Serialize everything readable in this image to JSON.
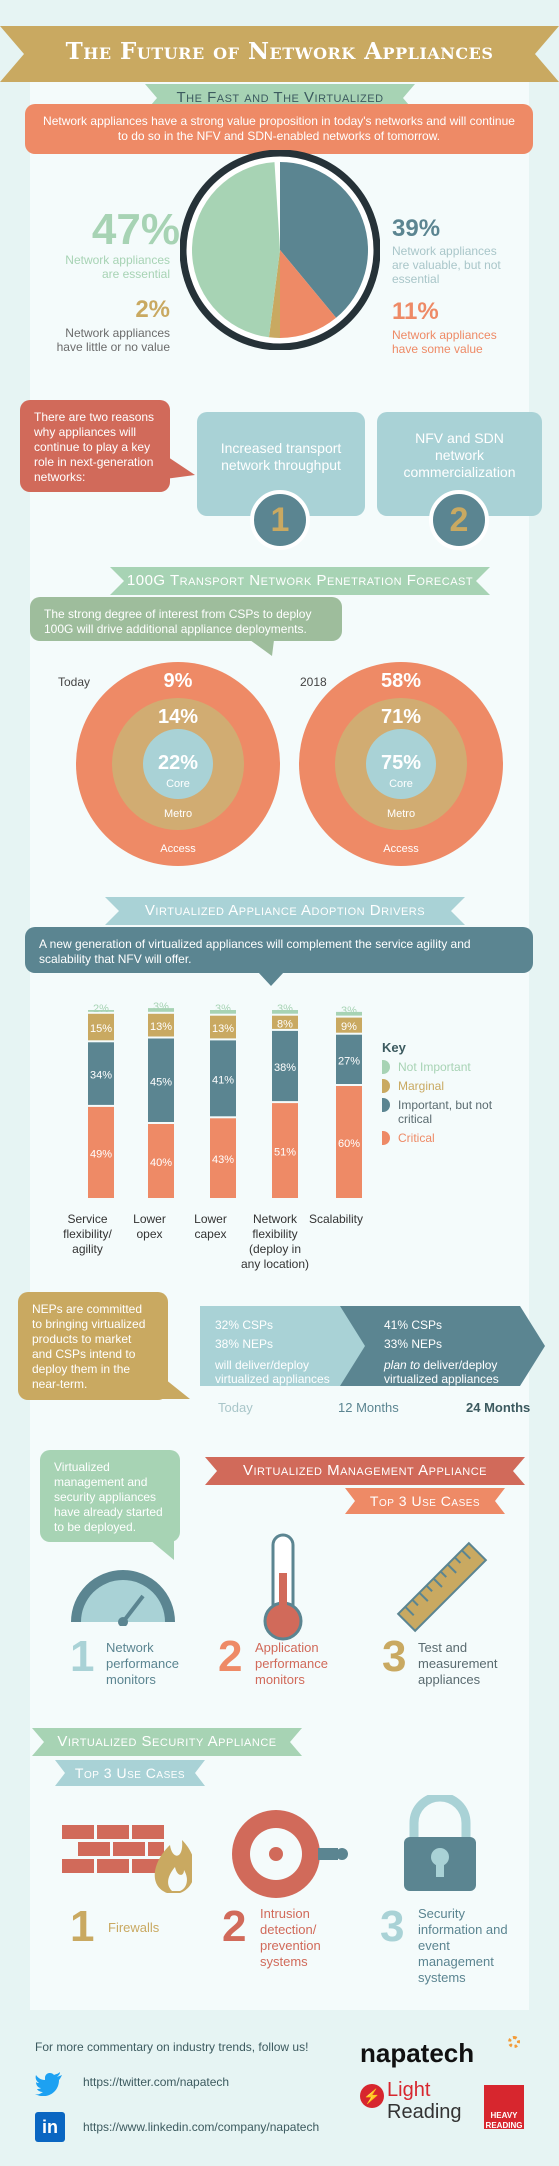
{
  "title": "The Future of Network Appliances",
  "section1": {
    "heading": "The Fast and The Virtualized",
    "intro": "Network appliances have a strong value proposition in today's networks and will continue to do so in the NFV and SDN-enabled networks of tomorrow.",
    "stats": [
      {
        "pct": "47%",
        "label": "Network appliances are essential",
        "color": "#a7d3b4"
      },
      {
        "pct": "2%",
        "label": "Network appliances have little or no value",
        "color": "#c9a961"
      },
      {
        "pct": "39%",
        "label": "Network appliances are valuable, but not essential",
        "color": "#5b8591"
      },
      {
        "pct": "11%",
        "label": "Network appliances have some value",
        "color": "#ee8a66"
      }
    ],
    "reasons_intro": "There are two reasons why appliances will continue to play a key role in next-generation networks:",
    "reasons": [
      {
        "num": "1",
        "label": "Increased transport network throughput"
      },
      {
        "num": "2",
        "label": "NFV and SDN network commercialization"
      }
    ]
  },
  "section2": {
    "heading": "100G Transport Network Penetration Forecast",
    "intro": "The strong degree of interest from CSPs to deploy 100G will drive additional appliance deployments.",
    "donuts": [
      {
        "year": "Today",
        "access": "9%",
        "metro": "14%",
        "core": "22%"
      },
      {
        "year": "2018",
        "access": "58%",
        "metro": "71%",
        "core": "75%"
      }
    ],
    "ring_labels": {
      "core": "Core",
      "metro": "Metro",
      "access": "Access"
    }
  },
  "section3": {
    "heading": "Virtualized Appliance Adoption Drivers",
    "intro": "A new generation of virtualized appliances will complement the service agility and scalability that NFV will offer.",
    "chart_data": {
      "type": "bar",
      "stacked": true,
      "categories": [
        "Service flexibility/ agility",
        "Lower opex",
        "Lower capex",
        "Network flexibility (deploy in any location)",
        "Scalability"
      ],
      "series": [
        {
          "name": "Critical",
          "color": "#ee8a66",
          "values": [
            49,
            40,
            43,
            51,
            60
          ]
        },
        {
          "name": "Important, but not critical",
          "color": "#5b8591",
          "values": [
            34,
            45,
            41,
            38,
            27
          ]
        },
        {
          "name": "Marginal",
          "color": "#c9a961",
          "values": [
            15,
            13,
            13,
            8,
            9
          ]
        },
        {
          "name": "Not Important",
          "color": "#a7d3b4",
          "values": [
            2,
            3,
            3,
            3,
            3
          ]
        }
      ],
      "value_labels": [
        [
          "49%",
          "40%",
          "43%",
          "51%",
          "60%"
        ],
        [
          "34%",
          "45%",
          "41%",
          "38%",
          "27%"
        ],
        [
          "15%",
          "13%",
          "13%",
          "8%",
          "9%"
        ],
        [
          "2%",
          "3%",
          "3%",
          "3%",
          "3%"
        ]
      ],
      "legend_title": "Key",
      "ylim": [
        0,
        100
      ]
    },
    "nep_text": "NEPs are committed to bringing virtualized products to market and CSPs intend to deploy them in the near-term.",
    "timeline": {
      "box1": {
        "csps": "32% CSPs",
        "neps": "38% NEPs",
        "note": "will deliver/deploy virtualized appliances"
      },
      "box2": {
        "csps": "41% CSPs",
        "neps": "33% NEPs",
        "note_italic": "plan to",
        "note": " deliver/deploy virtualized appliances"
      },
      "labels": [
        "Today",
        "12 Months",
        "24 Months"
      ]
    }
  },
  "section4": {
    "bubble": "Virtualized management and security appliances have already started to be deployed.",
    "heading": "Virtualized Management Appliance",
    "subheading": "Top 3 Use Cases",
    "cases": [
      {
        "num": "1",
        "label": "Network performance monitors",
        "icon": "gauge-icon"
      },
      {
        "num": "2",
        "label": "Application performance monitors",
        "icon": "thermometer-icon"
      },
      {
        "num": "3",
        "label": "Test and measurement appliances",
        "icon": "ruler-icon"
      }
    ]
  },
  "section5": {
    "heading": "Virtualized Security Appliance",
    "subheading": "Top 3 Use Cases",
    "cases": [
      {
        "num": "1",
        "label": "Firewalls",
        "icon": "firewall-icon"
      },
      {
        "num": "2",
        "label": "Intrusion detection/ prevention systems",
        "icon": "alarm-icon"
      },
      {
        "num": "3",
        "label": "Security information and event management systems",
        "icon": "padlock-icon"
      }
    ]
  },
  "footer": {
    "follow": "For more commentary on industry trends, follow us!",
    "twitter": "https://twitter.com/napatech",
    "linkedin": "https://www.linkedin.com/company/napatech",
    "logo_napatech": "napatech",
    "logo_light": "Light",
    "logo_reading": "Reading",
    "logo_heavy": "HEAVY READING"
  },
  "colors": {
    "teal": "#5b8591",
    "salmon": "#ee8a66",
    "gold": "#c9a961",
    "mint": "#a7d3b4",
    "lightblue": "#a9d2d6",
    "red": "#d16a5a"
  }
}
